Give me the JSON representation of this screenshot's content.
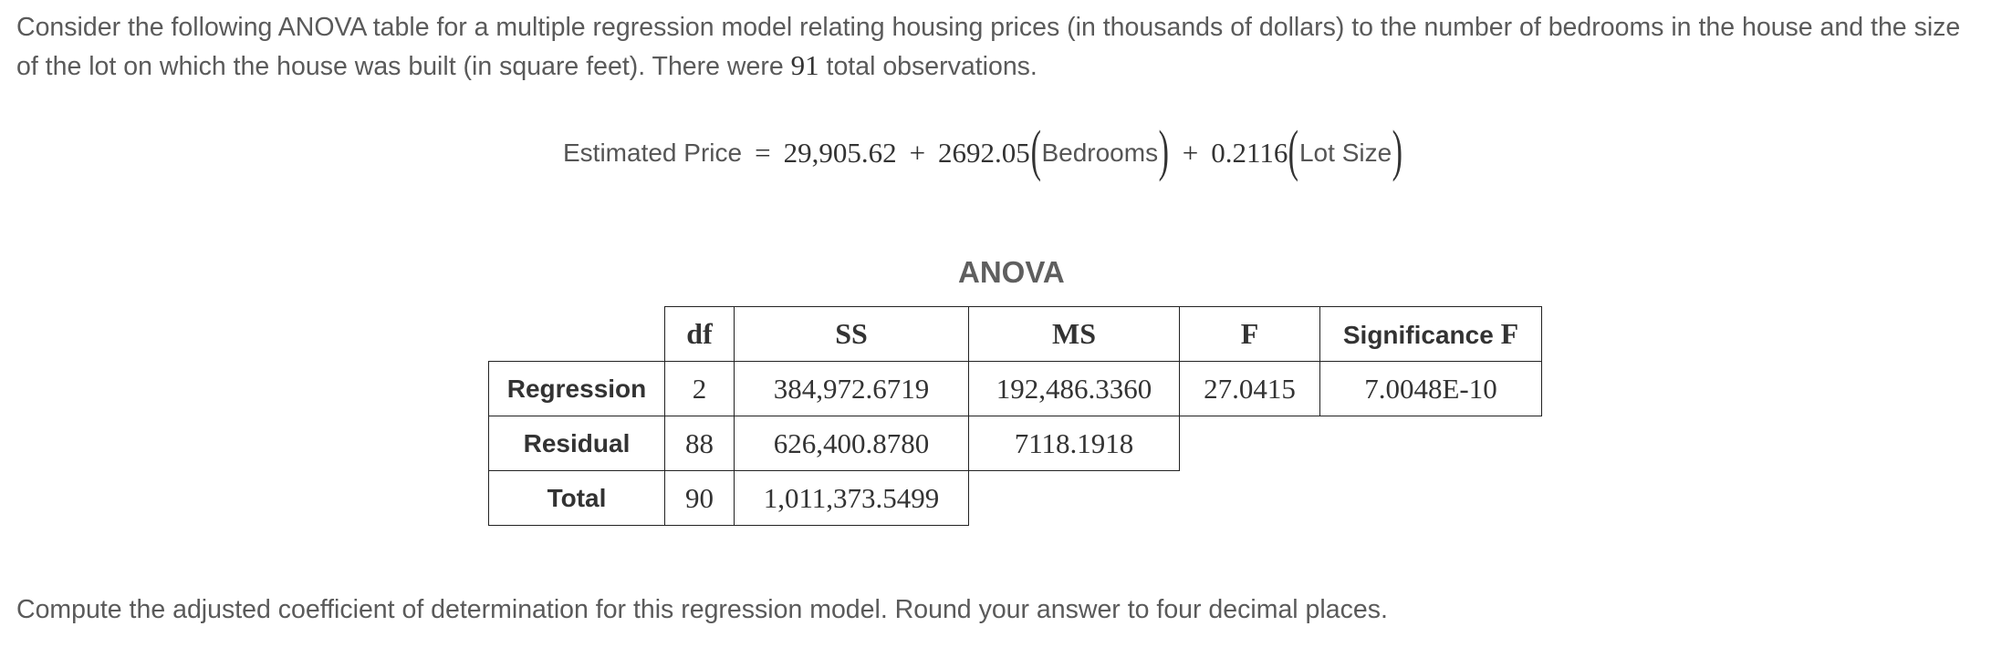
{
  "intro": {
    "text_before": "Consider the following ANOVA table for a multiple regression model relating housing prices (in thousands of dollars) to the number of bedrooms in the house and the size of the lot on which the house was built (in square feet). There were ",
    "observations": "91",
    "text_after": " total observations."
  },
  "equation": {
    "lhs": "Estimated Price",
    "equals": "=",
    "intercept": "29,905.62",
    "plus1": "+",
    "coef1": "2692.05",
    "var1": "Bedrooms",
    "plus2": "+",
    "coef2": "0.2116",
    "var2": "Lot Size"
  },
  "anova": {
    "title": "ANOVA",
    "headers": {
      "df": "df",
      "ss": "SS",
      "ms": "MS",
      "f": "F",
      "sig_word": "Significance",
      "sig_f": "F"
    },
    "rows": [
      {
        "label": "Regression",
        "df": "2",
        "ss": "384,972.6719",
        "ms": "192,486.3360",
        "f": "27.0415",
        "sig": "7.0048E-10"
      },
      {
        "label": "Residual",
        "df": "88",
        "ss": "626,400.8780",
        "ms": "7118.1918"
      },
      {
        "label": "Total",
        "df": "90",
        "ss": "1,011,373.5499"
      }
    ]
  },
  "question": "Compute the adjusted coefficient of determination for this regression model. Round your answer to four decimal places."
}
